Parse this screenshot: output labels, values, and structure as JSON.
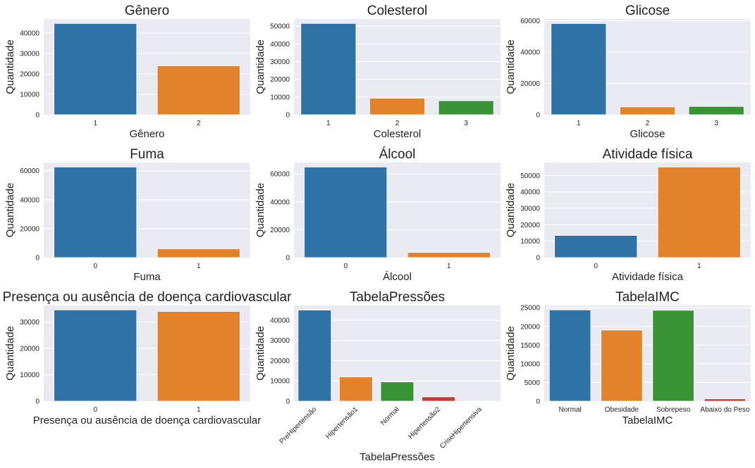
{
  "chart_data": [
    {
      "type": "bar",
      "title": "Gênero",
      "xlabel": "Gênero",
      "ylabel": "Quantidade",
      "categories": [
        "1",
        "2"
      ],
      "values": [
        44700,
        24000
      ],
      "yticks": [
        0,
        10000,
        20000,
        30000,
        40000
      ],
      "ylim": [
        0,
        46900
      ],
      "colors": [
        "#2f72a6",
        "#e2822b"
      ],
      "grid": true
    },
    {
      "type": "bar",
      "title": "Colesterol",
      "xlabel": "Colesterol",
      "ylabel": "Quantidade",
      "categories": [
        "1",
        "2",
        "3"
      ],
      "values": [
        51500,
        9300,
        7900
      ],
      "yticks": [
        0,
        10000,
        20000,
        30000,
        40000,
        50000
      ],
      "ylim": [
        0,
        54000
      ],
      "colors": [
        "#2f72a6",
        "#e2822b",
        "#3a9435"
      ],
      "grid": true
    },
    {
      "type": "bar",
      "title": "Glicose",
      "xlabel": "Glicose",
      "ylabel": "Quantidade",
      "categories": [
        "1",
        "2",
        "3"
      ],
      "values": [
        58200,
        5000,
        5300
      ],
      "yticks": [
        0,
        20000,
        40000,
        60000
      ],
      "ylim": [
        0,
        61100
      ],
      "colors": [
        "#2f72a6",
        "#e2822b",
        "#3a9435"
      ],
      "grid": true
    },
    {
      "type": "bar",
      "title": "Fuma",
      "xlabel": "Fuma",
      "ylabel": "Quantidade",
      "categories": [
        "0",
        "1"
      ],
      "values": [
        62600,
        6100
      ],
      "yticks": [
        0,
        20000,
        40000,
        60000
      ],
      "ylim": [
        0,
        65700
      ],
      "colors": [
        "#2f72a6",
        "#e2822b"
      ],
      "grid": true
    },
    {
      "type": "bar",
      "title": "Álcool",
      "xlabel": "Álcool",
      "ylabel": "Quantidade",
      "categories": [
        "0",
        "1"
      ],
      "values": [
        65000,
        3700
      ],
      "yticks": [
        0,
        20000,
        40000,
        60000
      ],
      "ylim": [
        0,
        68200
      ],
      "colors": [
        "#2f72a6",
        "#e2822b"
      ],
      "grid": true
    },
    {
      "type": "bar",
      "title": "Atividade física",
      "xlabel": "Atividade física",
      "ylabel": "Quantidade",
      "categories": [
        "0",
        "1"
      ],
      "values": [
        13500,
        55200
      ],
      "yticks": [
        0,
        10000,
        20000,
        30000,
        40000,
        50000
      ],
      "ylim": [
        0,
        57900
      ],
      "colors": [
        "#2f72a6",
        "#e2822b"
      ],
      "grid": true
    },
    {
      "type": "bar",
      "title": "Presença ou ausência de doença cardiovascular",
      "xlabel": "Presença ou ausência de doença cardiovascular",
      "ylabel": "Quantidade",
      "categories": [
        "0",
        "1"
      ],
      "values": [
        34600,
        34000
      ],
      "yticks": [
        0,
        10000,
        20000,
        30000
      ],
      "ylim": [
        0,
        36300
      ],
      "colors": [
        "#2f72a6",
        "#e2822b"
      ],
      "grid": true
    },
    {
      "type": "bar",
      "title": "TabelaPressões",
      "xlabel": "TabelaPressões",
      "ylabel": "Quantidade",
      "categories": [
        "PreHipertensão",
        "Hipertensão1",
        "Normal",
        "Hipertensão2",
        "CriseHipertensiva"
      ],
      "values": [
        45000,
        12000,
        9500,
        2100,
        100
      ],
      "yticks": [
        0,
        10000,
        20000,
        30000,
        40000
      ],
      "ylim": [
        0,
        47300
      ],
      "xtick_rotation": 45,
      "colors": [
        "#2f72a6",
        "#e2822b",
        "#3a9435",
        "#c03b34",
        "#8868ad"
      ],
      "grid": true
    },
    {
      "type": "bar",
      "title": "TabelaIMC",
      "xlabel": "TabelaIMC",
      "ylabel": "Quantidade",
      "categories": [
        "Normal",
        "Obesidade",
        "Sobrepeso",
        "Abaixo do Peso"
      ],
      "values": [
        24400,
        19000,
        24300,
        600
      ],
      "yticks": [
        0,
        5000,
        10000,
        15000,
        20000,
        25000
      ],
      "ylim": [
        0,
        25600
      ],
      "colors": [
        "#2f72a6",
        "#e2822b",
        "#3a9435",
        "#c03b34"
      ],
      "grid": true
    }
  ]
}
